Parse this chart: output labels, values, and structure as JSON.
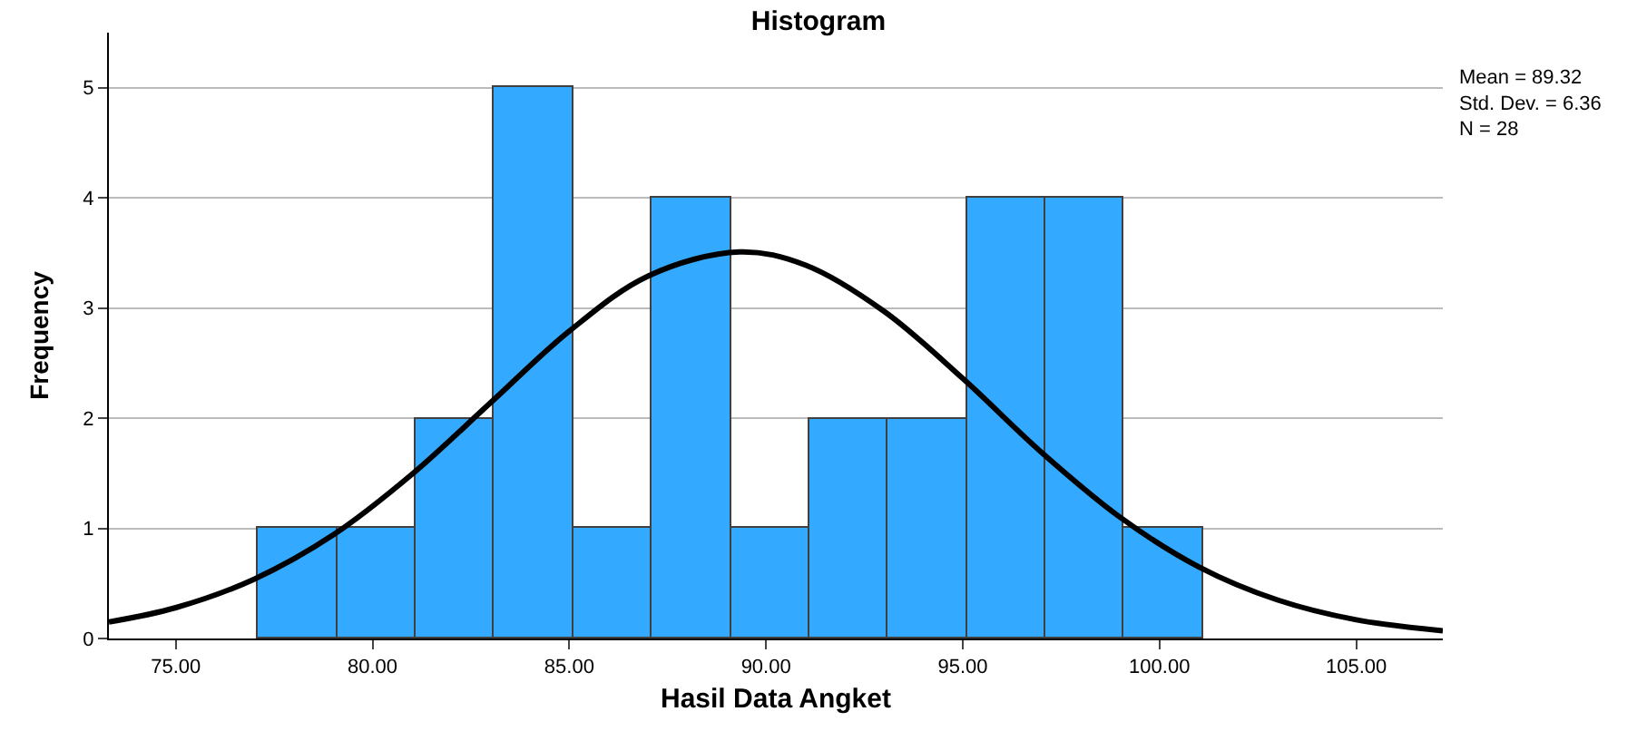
{
  "chart_data": {
    "type": "histogram",
    "title": "Histogram",
    "xlabel": "Hasil Data Angket",
    "ylabel": "Frequency",
    "bins": [
      77.1,
      79.1,
      81.1,
      83.1,
      85.1,
      87.1,
      89.1,
      91.1,
      93.1,
      95.1,
      97.1,
      99.1,
      101.1
    ],
    "values": [
      1,
      1,
      2,
      5,
      1,
      4,
      1,
      2,
      2,
      4,
      4,
      1
    ],
    "color": "#33aaff",
    "series": [
      {
        "type": "line",
        "color": "#000000",
        "x": [
          73.3,
          75,
          77,
          79,
          81,
          83,
          85,
          87,
          89.32,
          91,
          93,
          95,
          97,
          99,
          101,
          103,
          105,
          107.2
        ],
        "values": [
          0.15,
          0.28,
          0.54,
          0.94,
          1.49,
          2.14,
          2.79,
          3.29,
          3.51,
          3.39,
          2.97,
          2.36,
          1.69,
          1.1,
          0.65,
          0.35,
          0.17,
          0.07
        ]
      }
    ],
    "xlim": [
      73.3,
      107.2
    ],
    "xticks": [
      {
        "value": 75,
        "label": "75.00"
      },
      {
        "value": 80,
        "label": "80.00"
      },
      {
        "value": 85,
        "label": "85.00"
      },
      {
        "value": 90,
        "label": "90.00"
      },
      {
        "value": 95,
        "label": "95.00"
      },
      {
        "value": 100,
        "label": "100.00"
      },
      {
        "value": 105,
        "label": "105.00"
      }
    ],
    "ylim": [
      0,
      5.5
    ],
    "yticks": [
      0,
      1,
      2,
      3,
      4,
      5
    ],
    "grid": "y",
    "annotations": [
      "Mean = 89.32",
      "Std. Dev. = 6.36",
      "N = 28"
    ]
  }
}
